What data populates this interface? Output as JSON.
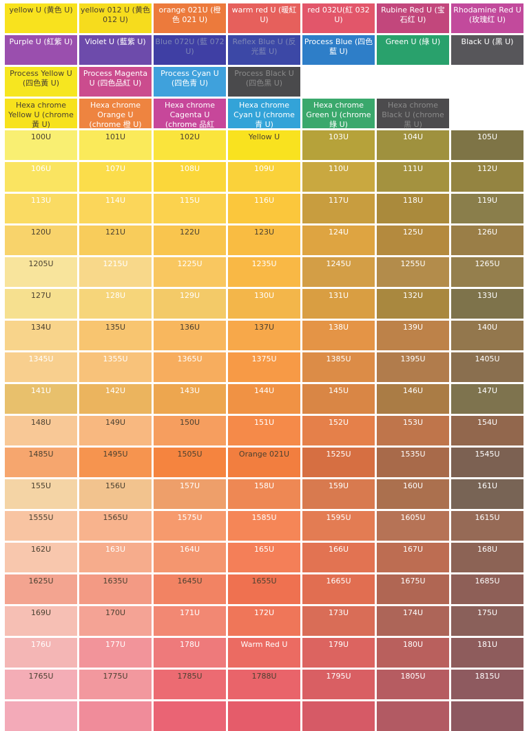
{
  "rows": [
    {
      "kind": "header",
      "cells": [
        {
          "label": "yellow U (黄色 U)",
          "color": "#f8e21e",
          "tone": "dark"
        },
        {
          "label": "yellow 012 U (黄色 012 U)",
          "color": "#f6dc1d",
          "tone": "dark"
        },
        {
          "label": "orange 021U (橙色 021 U)",
          "color": "#ec7a3c",
          "tone": "light"
        },
        {
          "label": "warm red U (暖紅 U)",
          "color": "#e6605c",
          "tone": "light"
        },
        {
          "label": "red 032U(紅 032 U)",
          "color": "#e2566a",
          "tone": "light"
        },
        {
          "label": "Rubine Red U (宝石红 U)",
          "color": "#c2477c",
          "tone": "light"
        },
        {
          "label": "Rhodamine Red U (玫瑰红 U)",
          "color": "#c24a9c",
          "tone": "light"
        }
      ]
    },
    {
      "kind": "header",
      "cells": [
        {
          "label": "Purple U (紅紫 U)",
          "color": "#9a4fae",
          "tone": "light"
        },
        {
          "label": "Violet U (藍紫 U)",
          "color": "#6d4bab",
          "tone": "light"
        },
        {
          "label": "Blue 072U (藍 072 U)",
          "color": "#3f3fa4",
          "tone": "faded"
        },
        {
          "label": "Reflex Blue U (反光藍 U)",
          "color": "#3c48a6",
          "tone": "faded"
        },
        {
          "label": "Process Blue (四色藍 U)",
          "color": "#2e7ec8",
          "tone": "light"
        },
        {
          "label": "Green U (綠 U)",
          "color": "#29a16c",
          "tone": "light"
        },
        {
          "label": "Black U (黑 U)",
          "color": "#57565a",
          "tone": "light"
        }
      ]
    },
    {
      "kind": "header",
      "cells": [
        {
          "label": "Process Yellow U (四色黃 U)",
          "color": "#f6e620",
          "tone": "dark"
        },
        {
          "label": "Process Magenta U (四色品紅 U)",
          "color": "#cb4c8e",
          "tone": "light"
        },
        {
          "label": "Process Cyan U (四色青 U)",
          "color": "#3fa1dc",
          "tone": "light"
        },
        {
          "label": "Process Black U (四色黑 U)",
          "color": "#4a4a4c",
          "tone": "ghost"
        }
      ]
    },
    {
      "kind": "header",
      "cells": [
        {
          "label": "Hexa chrome Yellow U (chrome 黃 U)",
          "color": "#f7e21d",
          "tone": "dark"
        },
        {
          "label": "Hexa chrome Orange U (chrome 橙 U)",
          "color": "#ee8440",
          "tone": "light"
        },
        {
          "label": "Hexa chrome Cagenta U (chrome 品紅",
          "color": "#c7479a",
          "tone": "light"
        },
        {
          "label": "Hexa chrome Cyan U (chrome 青 U)",
          "color": "#33a3d8",
          "tone": "light"
        },
        {
          "label": "Hexa chrome Green U (chrome 綠 U)",
          "color": "#3aa86c",
          "tone": "light"
        },
        {
          "label": "Hexa chrome Black U (chrome 黑 U)",
          "color": "#4c4b4d",
          "tone": "ghost"
        }
      ]
    },
    {
      "kind": "swatch",
      "cells": [
        {
          "label": "100U",
          "color": "#f9ef72",
          "tone": "dark"
        },
        {
          "label": "101U",
          "color": "#faea5a",
          "tone": "dark"
        },
        {
          "label": "102U",
          "color": "#fae43c",
          "tone": "dark"
        },
        {
          "label": "Yellow U",
          "color": "#f9e21f",
          "tone": "dark"
        },
        {
          "label": "103U",
          "color": "#b6a23a",
          "tone": "light"
        },
        {
          "label": "104U",
          "color": "#9f913e",
          "tone": "light"
        },
        {
          "label": "105U",
          "color": "#7e7446",
          "tone": "light"
        }
      ]
    },
    {
      "kind": "swatch",
      "cells": [
        {
          "label": "106U",
          "color": "#fae461",
          "tone": "light"
        },
        {
          "label": "107U",
          "color": "#fbdd4b",
          "tone": "light"
        },
        {
          "label": "108U",
          "color": "#fbd73a",
          "tone": "light"
        },
        {
          "label": "109U",
          "color": "#fad23a",
          "tone": "light"
        },
        {
          "label": "110U",
          "color": "#c9a840",
          "tone": "light"
        },
        {
          "label": "111U",
          "color": "#a4923f",
          "tone": "light"
        },
        {
          "label": "112U",
          "color": "#948441",
          "tone": "light"
        }
      ]
    },
    {
      "kind": "swatch",
      "cells": [
        {
          "label": "113U",
          "color": "#fadb63",
          "tone": "light"
        },
        {
          "label": "114U",
          "color": "#fbd65a",
          "tone": "light"
        },
        {
          "label": "115U",
          "color": "#fbd24e",
          "tone": "light"
        },
        {
          "label": "116U",
          "color": "#fbc73c",
          "tone": "light"
        },
        {
          "label": "117U",
          "color": "#c89d3f",
          "tone": "light"
        },
        {
          "label": "118U",
          "color": "#aa8a3c",
          "tone": "light"
        },
        {
          "label": "119U",
          "color": "#8a7e4b",
          "tone": "light"
        }
      ]
    },
    {
      "kind": "swatch",
      "cells": [
        {
          "label": "120U",
          "color": "#f8d36b",
          "tone": "dark"
        },
        {
          "label": "121U",
          "color": "#f8cc5b",
          "tone": "dark"
        },
        {
          "label": "122U",
          "color": "#f9c54e",
          "tone": "dark"
        },
        {
          "label": "123U",
          "color": "#f9bc42",
          "tone": "dark"
        },
        {
          "label": "124U",
          "color": "#dea441",
          "tone": "light"
        },
        {
          "label": "125U",
          "color": "#b48a3e",
          "tone": "light"
        },
        {
          "label": "126U",
          "color": "#9a7e47",
          "tone": "light"
        }
      ]
    },
    {
      "kind": "swatch",
      "cells": [
        {
          "label": "1205U",
          "color": "#f8e49c",
          "tone": "dark"
        },
        {
          "label": "1215U",
          "color": "#f8d88a",
          "tone": "light"
        },
        {
          "label": "1225U",
          "color": "#f9c760",
          "tone": "light"
        },
        {
          "label": "1235U",
          "color": "#f9b845",
          "tone": "light"
        },
        {
          "label": "1245U",
          "color": "#d39e46",
          "tone": "light"
        },
        {
          "label": "1255U",
          "color": "#b38c4b",
          "tone": "light"
        },
        {
          "label": "1265U",
          "color": "#957f4d",
          "tone": "light"
        }
      ]
    },
    {
      "kind": "swatch",
      "cells": [
        {
          "label": "127U",
          "color": "#f6e08f",
          "tone": "dark"
        },
        {
          "label": "128U",
          "color": "#f6d57a",
          "tone": "light"
        },
        {
          "label": "129U",
          "color": "#f3ca68",
          "tone": "light"
        },
        {
          "label": "130U",
          "color": "#f3b64a",
          "tone": "light"
        },
        {
          "label": "131U",
          "color": "#d99e42",
          "tone": "light"
        },
        {
          "label": "132U",
          "color": "#a9883f",
          "tone": "light"
        },
        {
          "label": "133U",
          "color": "#7e734b",
          "tone": "light"
        }
      ]
    },
    {
      "kind": "swatch",
      "cells": [
        {
          "label": "134U",
          "color": "#f8d48b",
          "tone": "dark"
        },
        {
          "label": "135U",
          "color": "#f8c570",
          "tone": "dark"
        },
        {
          "label": "136U",
          "color": "#f8b75e",
          "tone": "dark"
        },
        {
          "label": "137U",
          "color": "#f7a84a",
          "tone": "dark"
        },
        {
          "label": "138U",
          "color": "#e49446",
          "tone": "light"
        },
        {
          "label": "139U",
          "color": "#bd8249",
          "tone": "light"
        },
        {
          "label": "140U",
          "color": "#93774d",
          "tone": "light"
        }
      ]
    },
    {
      "kind": "swatch",
      "cells": [
        {
          "label": "1345U",
          "color": "#f8cf8e",
          "tone": "light"
        },
        {
          "label": "1355U",
          "color": "#f8c27a",
          "tone": "light"
        },
        {
          "label": "1365U",
          "color": "#f7ad5e",
          "tone": "light"
        },
        {
          "label": "1375U",
          "color": "#f79a46",
          "tone": "light"
        },
        {
          "label": "1385U",
          "color": "#dc8c47",
          "tone": "light"
        },
        {
          "label": "1395U",
          "color": "#b17c4c",
          "tone": "light"
        },
        {
          "label": "1405U",
          "color": "#8a6f4f",
          "tone": "light"
        }
      ]
    },
    {
      "kind": "swatch",
      "cells": [
        {
          "label": "141U",
          "color": "#e8c06c",
          "tone": "light"
        },
        {
          "label": "142U",
          "color": "#ebb45e",
          "tone": "light"
        },
        {
          "label": "143U",
          "color": "#eda64f",
          "tone": "light"
        },
        {
          "label": "144U",
          "color": "#f09244",
          "tone": "light"
        },
        {
          "label": "145U",
          "color": "#d98645",
          "tone": "light"
        },
        {
          "label": "146U",
          "color": "#aa7c45",
          "tone": "light"
        },
        {
          "label": "147U",
          "color": "#7e734e",
          "tone": "light"
        }
      ]
    },
    {
      "kind": "swatch",
      "cells": [
        {
          "label": "148U",
          "color": "#f8c896",
          "tone": "dark"
        },
        {
          "label": "149U",
          "color": "#f8b880",
          "tone": "dark"
        },
        {
          "label": "150U",
          "color": "#f69e5f",
          "tone": "dark"
        },
        {
          "label": "151U",
          "color": "#f58a49",
          "tone": "light"
        },
        {
          "label": "152U",
          "color": "#e5804a",
          "tone": "light"
        },
        {
          "label": "153U",
          "color": "#bf754b",
          "tone": "light"
        },
        {
          "label": "154U",
          "color": "#92674d",
          "tone": "light"
        }
      ]
    },
    {
      "kind": "swatch",
      "cells": [
        {
          "label": "1485U",
          "color": "#f6a66e",
          "tone": "dark"
        },
        {
          "label": "1495U",
          "color": "#f6944f",
          "tone": "dark"
        },
        {
          "label": "1505U",
          "color": "#f5843f",
          "tone": "dark"
        },
        {
          "label": "Orange 021U",
          "color": "#f27e3f",
          "tone": "dark"
        },
        {
          "label": "1525U",
          "color": "#d66f42",
          "tone": "light"
        },
        {
          "label": "1535U",
          "color": "#a86a4a",
          "tone": "light"
        },
        {
          "label": "1545U",
          "color": "#7c6152",
          "tone": "light"
        }
      ]
    },
    {
      "kind": "swatch",
      "cells": [
        {
          "label": "155U",
          "color": "#f4d4a5",
          "tone": "dark"
        },
        {
          "label": "156U",
          "color": "#f2c38e",
          "tone": "dark"
        },
        {
          "label": "157U",
          "color": "#ee9f6a",
          "tone": "light"
        },
        {
          "label": "158U",
          "color": "#ee8854",
          "tone": "light"
        },
        {
          "label": "159U",
          "color": "#d87a4f",
          "tone": "light"
        },
        {
          "label": "160U",
          "color": "#ab704e",
          "tone": "light"
        },
        {
          "label": "161U",
          "color": "#786455",
          "tone": "light"
        }
      ]
    },
    {
      "kind": "swatch",
      "cells": [
        {
          "label": "1555U",
          "color": "#f8c4a2",
          "tone": "dark"
        },
        {
          "label": "1565U",
          "color": "#f8b38d",
          "tone": "dark"
        },
        {
          "label": "1575U",
          "color": "#f69a6d",
          "tone": "light"
        },
        {
          "label": "1585U",
          "color": "#f58657",
          "tone": "light"
        },
        {
          "label": "1595U",
          "color": "#e37c53",
          "tone": "light"
        },
        {
          "label": "1605U",
          "color": "#b67356",
          "tone": "light"
        },
        {
          "label": "1615U",
          "color": "#966a56",
          "tone": "light"
        }
      ]
    },
    {
      "kind": "swatch",
      "cells": [
        {
          "label": "162U",
          "color": "#f8c7ad",
          "tone": "dark"
        },
        {
          "label": "163U",
          "color": "#f6ac8c",
          "tone": "light"
        },
        {
          "label": "164U",
          "color": "#f4966f",
          "tone": "light"
        },
        {
          "label": "165U",
          "color": "#f47f58",
          "tone": "light"
        },
        {
          "label": "166U",
          "color": "#e27352",
          "tone": "light"
        },
        {
          "label": "167U",
          "color": "#bd6d52",
          "tone": "light"
        },
        {
          "label": "168U",
          "color": "#8c6355",
          "tone": "light"
        }
      ]
    },
    {
      "kind": "swatch",
      "cells": [
        {
          "label": "1625U",
          "color": "#f3a490",
          "tone": "dark"
        },
        {
          "label": "1635U",
          "color": "#f39a84",
          "tone": "dark"
        },
        {
          "label": "1645U",
          "color": "#f28363",
          "tone": "dark"
        },
        {
          "label": "1655U",
          "color": "#ef7150",
          "tone": "dark"
        },
        {
          "label": "1665U",
          "color": "#e16e51",
          "tone": "light"
        },
        {
          "label": "1675U",
          "color": "#b06653",
          "tone": "light"
        },
        {
          "label": "1685U",
          "color": "#8e5f57",
          "tone": "light"
        }
      ]
    },
    {
      "kind": "swatch",
      "cells": [
        {
          "label": "169U",
          "color": "#f6bfb4",
          "tone": "dark"
        },
        {
          "label": "170U",
          "color": "#f4a395",
          "tone": "dark"
        },
        {
          "label": "171U",
          "color": "#f28873",
          "tone": "light"
        },
        {
          "label": "172U",
          "color": "#ef7659",
          "tone": "light"
        },
        {
          "label": "173U",
          "color": "#d96d57",
          "tone": "light"
        },
        {
          "label": "174U",
          "color": "#ad6558",
          "tone": "light"
        },
        {
          "label": "175U",
          "color": "#8a605a",
          "tone": "light"
        }
      ]
    },
    {
      "kind": "swatch",
      "cells": [
        {
          "label": "176U",
          "color": "#f4b6b5",
          "tone": "light"
        },
        {
          "label": "177U",
          "color": "#f2949a",
          "tone": "light"
        },
        {
          "label": "178U",
          "color": "#ee7a7b",
          "tone": "light"
        },
        {
          "label": "Warm Red U",
          "color": "#eb6b62",
          "tone": "light"
        },
        {
          "label": "179U",
          "color": "#dc6460",
          "tone": "light"
        },
        {
          "label": "180U",
          "color": "#b9605d",
          "tone": "light"
        },
        {
          "label": "181U",
          "color": "#8e5c5c",
          "tone": "light"
        }
      ]
    },
    {
      "kind": "swatch",
      "cells": [
        {
          "label": "1765U",
          "color": "#f4adb6",
          "tone": "dark"
        },
        {
          "label": "1775U",
          "color": "#f2989e",
          "tone": "dark"
        },
        {
          "label": "1785U",
          "color": "#ec6b72",
          "tone": "dark"
        },
        {
          "label": "1788U",
          "color": "#e9646a",
          "tone": "dark"
        },
        {
          "label": "1795U",
          "color": "#d95f63",
          "tone": "light"
        },
        {
          "label": "1805U",
          "color": "#b65c61",
          "tone": "light"
        },
        {
          "label": "1815U",
          "color": "#8e5a5f",
          "tone": "light"
        }
      ]
    },
    {
      "kind": "swatch",
      "cells": [
        {
          "label": "",
          "color": "#f3aab8",
          "tone": "dark"
        },
        {
          "label": "",
          "color": "#f08c9a",
          "tone": "dark"
        },
        {
          "label": "",
          "color": "#ea6474",
          "tone": "dark"
        },
        {
          "label": "",
          "color": "#e55c6a",
          "tone": "dark"
        },
        {
          "label": "",
          "color": "#d65a66",
          "tone": "light"
        },
        {
          "label": "",
          "color": "#b25a63",
          "tone": "light"
        },
        {
          "label": "",
          "color": "#8d5860",
          "tone": "light"
        }
      ]
    }
  ]
}
